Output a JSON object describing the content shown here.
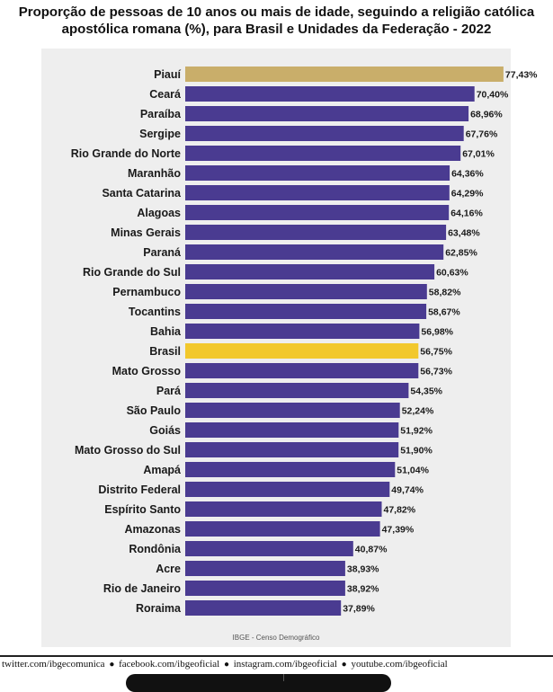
{
  "title": "Proporção de pessoas de 10 anos ou mais de idade, seguindo a religião católica apostólica romana (%), para Brasil e Unidades da Federação - 2022",
  "source": "IBGE - Censo Demográfico",
  "footer": {
    "links": [
      "twitter.com/ibgecomunica",
      "facebook.com/ibgeoficial",
      "instagram.com/ibgeoficial",
      "youtube.com/ibgeoficial"
    ],
    "separator": "●"
  },
  "colors": {
    "default_bar": "#4a3b91",
    "highlight_top": "#c9ae6a",
    "highlight_brasil": "#f2c82c"
  },
  "chart_data": {
    "type": "bar",
    "orientation": "horizontal",
    "title": "Proporção de pessoas de 10 anos ou mais de idade, seguindo a religião católica apostólica romana (%), para Brasil e Unidades da Federação - 2022",
    "xlabel": "",
    "ylabel": "",
    "xlim": [
      0,
      100
    ],
    "grid": false,
    "categories": [
      "Piauí",
      "Ceará",
      "Paraíba",
      "Sergipe",
      "Rio Grande do Norte",
      "Maranhão",
      "Santa Catarina",
      "Alagoas",
      "Minas Gerais",
      "Paraná",
      "Rio Grande do Sul",
      "Pernambuco",
      "Tocantins",
      "Bahia",
      "Brasil",
      "Mato Grosso",
      "Pará",
      "São Paulo",
      "Goiás",
      "Mato Grosso do Sul",
      "Amapá",
      "Distrito Federal",
      "Espírito Santo",
      "Amazonas",
      "Rondônia",
      "Acre",
      "Rio de Janeiro",
      "Roraima"
    ],
    "values": [
      77.43,
      70.4,
      68.96,
      67.76,
      67.01,
      64.36,
      64.29,
      64.16,
      63.48,
      62.85,
      60.63,
      58.82,
      58.67,
      56.98,
      56.75,
      56.73,
      54.35,
      52.24,
      51.92,
      51.9,
      51.04,
      49.74,
      47.82,
      47.39,
      40.87,
      38.93,
      38.92,
      37.89
    ],
    "value_labels": [
      "77,43%",
      "70,40%",
      "68,96%",
      "67,76%",
      "67,01%",
      "64,36%",
      "64,29%",
      "64,16%",
      "63,48%",
      "62,85%",
      "60,63%",
      "58,82%",
      "58,67%",
      "56,98%",
      "56,75%",
      "56,73%",
      "54,35%",
      "52,24%",
      "51,92%",
      "51,90%",
      "51,04%",
      "49,74%",
      "47,82%",
      "47,39%",
      "40,87%",
      "38,93%",
      "38,92%",
      "37,89%"
    ],
    "highlights": {
      "Piauí": "#c9ae6a",
      "Brasil": "#f2c82c"
    }
  }
}
